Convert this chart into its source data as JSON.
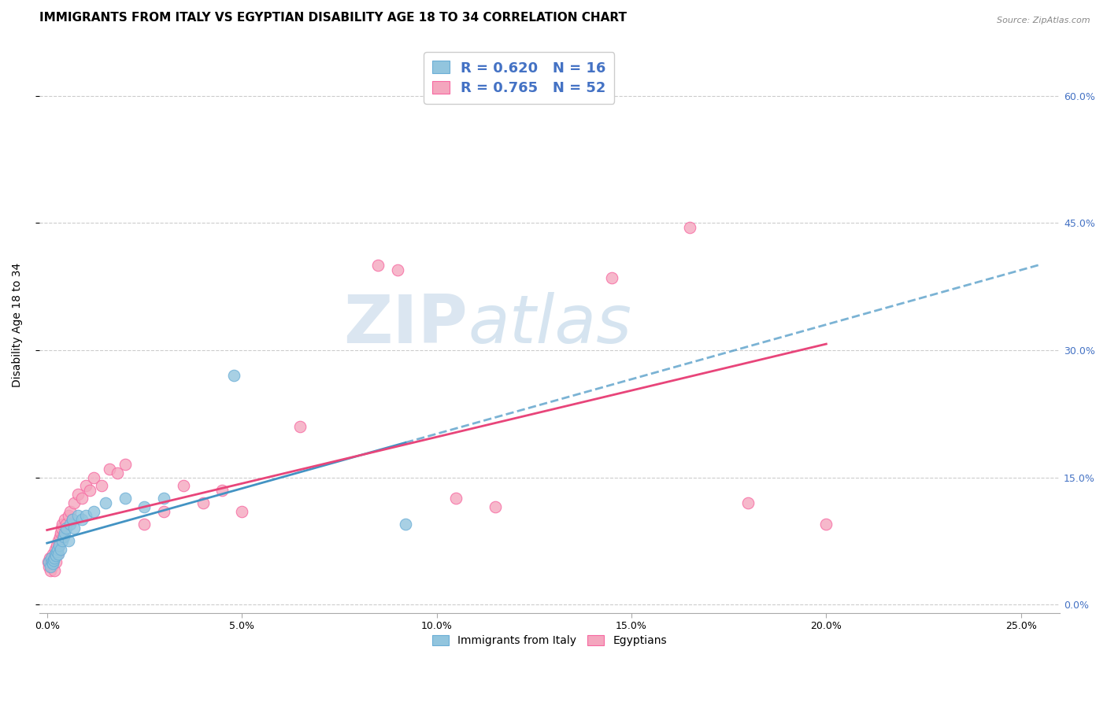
{
  "title": "IMMIGRANTS FROM ITALY VS EGYPTIAN DISABILITY AGE 18 TO 34 CORRELATION CHART",
  "source": "Source: ZipAtlas.com",
  "ylabel": "Disability Age 18 to 34",
  "x_tick_labels": [
    "0.0%",
    "5.0%",
    "10.0%",
    "15.0%",
    "20.0%",
    "25.0%"
  ],
  "x_tick_values": [
    0.0,
    5.0,
    10.0,
    15.0,
    20.0,
    25.0
  ],
  "y_tick_labels": [
    "0.0%",
    "15.0%",
    "30.0%",
    "45.0%",
    "60.0%"
  ],
  "y_tick_values": [
    0.0,
    15.0,
    30.0,
    45.0,
    60.0
  ],
  "xlim": [
    -0.2,
    26.0
  ],
  "ylim": [
    -1.0,
    67.0
  ],
  "italy_color": "#92c5de",
  "egypt_color": "#f4a6be",
  "italy_edge_color": "#6baed6",
  "egypt_edge_color": "#f768a1",
  "italy_line_color": "#4393c3",
  "egypt_line_color": "#e8457a",
  "watermark_zip": "ZIP",
  "watermark_atlas": "atlas",
  "italy_x": [
    0.05,
    0.08,
    0.1,
    0.12,
    0.14,
    0.16,
    0.18,
    0.2,
    0.22,
    0.24,
    0.26,
    0.28,
    0.3,
    0.35,
    0.38,
    0.42,
    0.45,
    0.5,
    0.55,
    0.6,
    0.65,
    0.7,
    0.8,
    0.9,
    1.0,
    1.2,
    1.5,
    2.0,
    2.5,
    3.0,
    4.8,
    9.2
  ],
  "italy_y": [
    5.0,
    4.5,
    5.5,
    5.0,
    4.8,
    5.2,
    5.5,
    6.0,
    5.8,
    6.2,
    6.5,
    6.0,
    7.0,
    6.5,
    7.5,
    8.0,
    8.5,
    9.0,
    7.5,
    9.5,
    10.0,
    9.0,
    10.5,
    10.0,
    10.5,
    11.0,
    12.0,
    12.5,
    11.5,
    12.5,
    27.0,
    9.5
  ],
  "egypt_x": [
    0.03,
    0.05,
    0.07,
    0.09,
    0.1,
    0.11,
    0.12,
    0.14,
    0.15,
    0.16,
    0.18,
    0.2,
    0.22,
    0.24,
    0.26,
    0.28,
    0.3,
    0.32,
    0.34,
    0.36,
    0.38,
    0.4,
    0.45,
    0.5,
    0.55,
    0.6,
    0.65,
    0.7,
    0.8,
    0.9,
    1.0,
    1.1,
    1.2,
    1.4,
    1.6,
    1.8,
    2.0,
    2.5,
    3.0,
    3.5,
    4.0,
    4.5,
    5.0,
    6.5,
    8.5,
    9.0,
    10.5,
    11.5,
    14.5,
    16.5,
    18.0,
    20.0
  ],
  "egypt_y": [
    5.0,
    4.5,
    5.5,
    4.0,
    5.0,
    5.5,
    4.5,
    6.0,
    5.0,
    5.5,
    4.0,
    6.5,
    5.0,
    7.0,
    6.0,
    7.5,
    7.0,
    8.0,
    8.5,
    9.0,
    9.5,
    8.0,
    10.0,
    9.5,
    10.5,
    11.0,
    10.0,
    12.0,
    13.0,
    12.5,
    14.0,
    13.5,
    15.0,
    14.0,
    16.0,
    15.5,
    16.5,
    9.5,
    11.0,
    14.0,
    12.0,
    13.5,
    11.0,
    21.0,
    40.0,
    39.5,
    12.5,
    11.5,
    38.5,
    44.5,
    12.0,
    9.5
  ],
  "italy_marker_size": 110,
  "egypt_marker_size": 110,
  "background_color": "#ffffff",
  "grid_color": "#cccccc",
  "title_fontsize": 11,
  "axis_label_fontsize": 10,
  "tick_fontsize": 9,
  "legend_fontsize": 13
}
